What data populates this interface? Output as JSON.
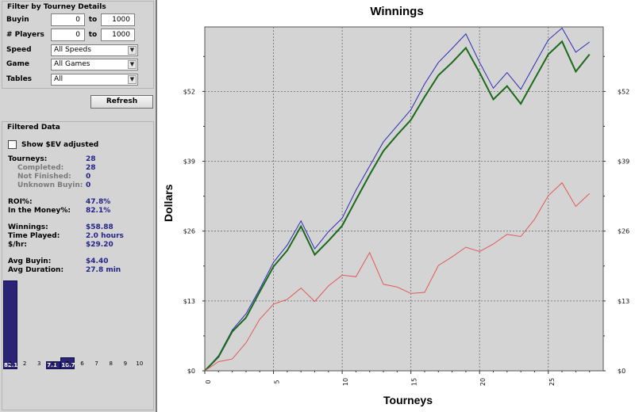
{
  "filter": {
    "title": "Filter by Tourney Details",
    "buyin_label": "Buyin",
    "buyin_min": "0",
    "buyin_max": "1000",
    "players_label": "# Players",
    "players_min": "0",
    "players_max": "1000",
    "to_label": "to",
    "speed_label": "Speed",
    "speed_value": "All Speeds",
    "game_label": "Game",
    "game_value": "All Games",
    "tables_label": "Tables",
    "tables_value": "All",
    "refresh_label": "Refresh"
  },
  "filtered": {
    "title": "Filtered Data",
    "ev_label": "Show $EV adjusted",
    "ev_checked": false,
    "stats": [
      {
        "label": "Tourneys:",
        "value": "28",
        "sub": false
      },
      {
        "label": "Completed:",
        "value": "28",
        "sub": true
      },
      {
        "label": "Not Finished:",
        "value": "0",
        "sub": true
      },
      {
        "label": "Unknown Buyin:",
        "value": "0",
        "sub": true
      },
      {
        "label": "ROI%:",
        "value": "47.8%",
        "sub": false
      },
      {
        "label": "In the Money%:",
        "value": "82.1%",
        "sub": false
      },
      {
        "label": "Winnings:",
        "value": "$58.88",
        "sub": false
      },
      {
        "label": "Time Played:",
        "value": "2.0 hours",
        "sub": false
      },
      {
        "label": "$/hr:",
        "value": "$29.20",
        "sub": false
      },
      {
        "label": "Avg Buyin:",
        "value": "$4.40",
        "sub": false
      },
      {
        "label": "Avg Duration:",
        "value": "27.8 min",
        "sub": false
      }
    ]
  },
  "finish_histogram": {
    "positions": [
      "1",
      "2",
      "3",
      "4",
      "5",
      "6",
      "7",
      "8",
      "9",
      "10"
    ],
    "values": [
      82.1,
      0,
      0,
      7.1,
      10.7,
      0,
      0,
      0,
      0,
      0
    ],
    "labels": [
      "82.1",
      "",
      "",
      "7.1",
      "10.7",
      "",
      "",
      "",
      "",
      ""
    ],
    "color": "#2b2476"
  },
  "chart_data": {
    "type": "line",
    "title": "Winnings",
    "xlabel": "Tourneys",
    "ylabel": "Dollars",
    "xlim": [
      0,
      29
    ],
    "ylim": [
      0,
      64
    ],
    "x_ticks": [
      0,
      5,
      10,
      15,
      20,
      25
    ],
    "y_ticks": [
      0,
      13,
      26,
      39,
      52
    ],
    "y_tick_labels": [
      "$0",
      "$13",
      "$26",
      "$39",
      "$52"
    ],
    "grid": true,
    "plot_background": "#d4d4d4",
    "series": [
      {
        "color": "#2b2bb5",
        "width": 1,
        "values": [
          0,
          2.8,
          7.6,
          10.6,
          15.2,
          20.2,
          23.4,
          27.9,
          22.7,
          25.9,
          28.4,
          33.6,
          38.1,
          42.6,
          45.6,
          48.6,
          53.4,
          57.4,
          60.0,
          62.7,
          57.4,
          52.6,
          55.5,
          52.4,
          57.0,
          61.6,
          63.8,
          59.3,
          61.2
        ]
      },
      {
        "color": "#1a6a1a",
        "width": 2,
        "values": [
          0,
          2.6,
          7.3,
          9.9,
          14.7,
          19.4,
          22.4,
          26.9,
          21.6,
          24.2,
          27.0,
          31.8,
          36.5,
          40.9,
          43.9,
          46.7,
          51.0,
          55.0,
          57.4,
          60.1,
          55.5,
          50.5,
          53.0,
          49.7,
          54.3,
          58.9,
          61.3,
          55.7,
          58.9
        ]
      },
      {
        "color": "#e05a5a",
        "width": 1,
        "values": [
          0,
          1.7,
          2.2,
          5.2,
          9.6,
          12.4,
          13.3,
          15.4,
          12.9,
          15.8,
          17.8,
          17.5,
          22.0,
          16.1,
          15.6,
          14.4,
          14.6,
          19.6,
          21.2,
          23.0,
          22.2,
          23.6,
          25.4,
          25.0,
          28.2,
          32.6,
          35.0,
          30.6,
          33.0
        ]
      }
    ]
  }
}
